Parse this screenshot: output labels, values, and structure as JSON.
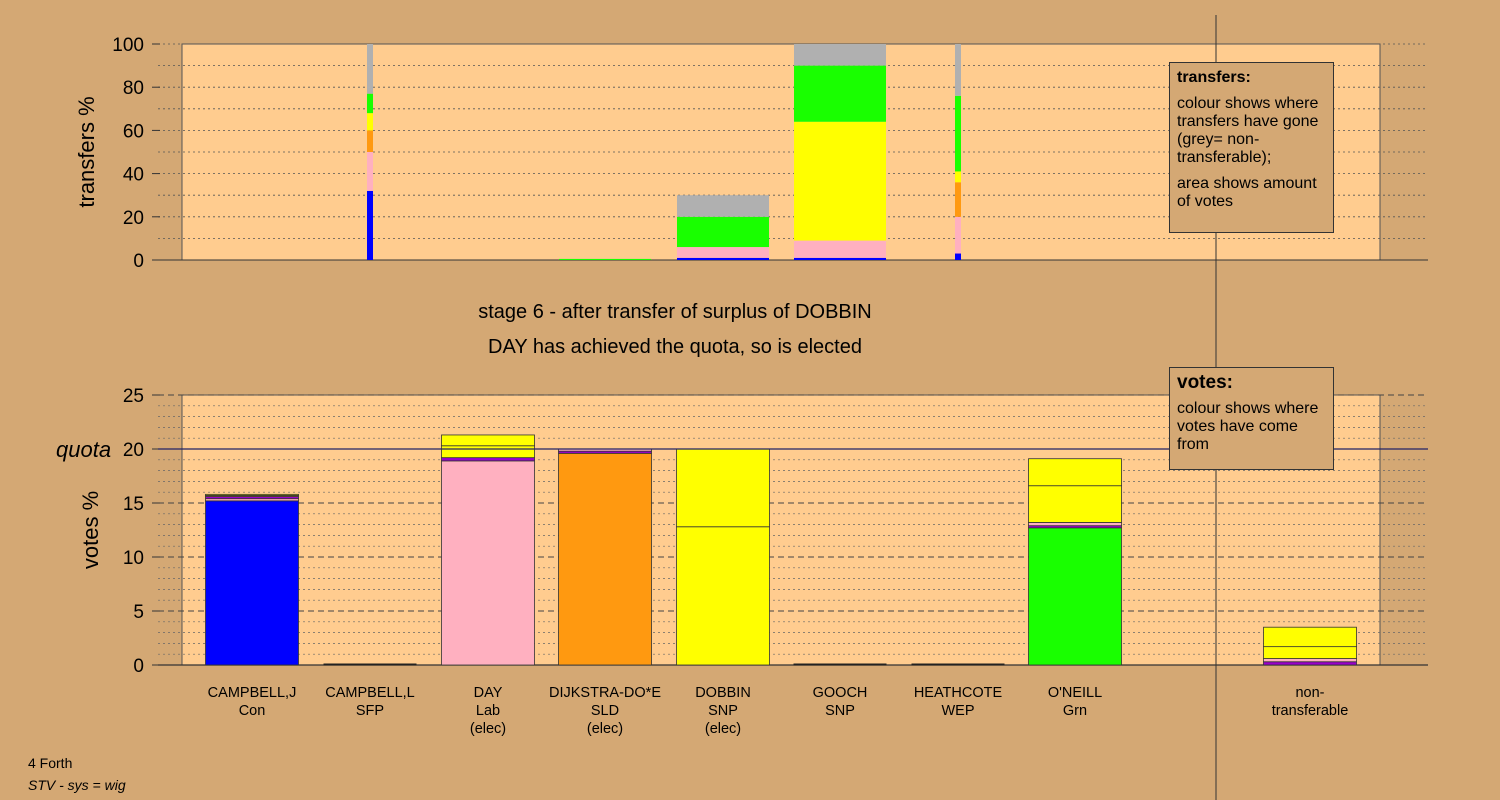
{
  "stage_line1": "stage 6 - after transfer of surplus of DOBBIN",
  "stage_line2": "DAY has achieved the quota, so is elected",
  "footer": {
    "region": "4 Forth",
    "system": "STV - sys = wig"
  },
  "transfers_legend": {
    "title": "transfers:",
    "p1": "colour shows where transfers have gone (grey= non-transferable);",
    "p2": "area shows amount of votes"
  },
  "votes_legend": {
    "title": "votes:",
    "p1": "colour shows where votes have come from"
  },
  "colors": {
    "background": "#d4a874",
    "plot": "#ffcc8f",
    "Con": "#0000ff",
    "SFP": "#9900cc",
    "Lab": "#ffb0c0",
    "SLD": "#ff9910",
    "SNP": "#ffff00",
    "WEP": "#cc66cc",
    "Grn": "#19ff00",
    "nontransferable": "#b0b0b0"
  },
  "chart_data": [
    {
      "type": "bar",
      "title": "",
      "ylabel": "transfers %",
      "ylim": [
        0,
        100
      ],
      "yticks": [
        0,
        20,
        40,
        60,
        80,
        100
      ],
      "grid": true,
      "columns": [
        {
          "candidate": "CAMPBELL,L",
          "thin": true,
          "segments": [
            {
              "color": "#0000ff",
              "value": 32
            },
            {
              "color": "#ffb0c0",
              "value": 18
            },
            {
              "color": "#ff9910",
              "value": 10
            },
            {
              "color": "#ffff00",
              "value": 8
            },
            {
              "color": "#19ff00",
              "value": 9
            },
            {
              "color": "#b0b0b0",
              "value": 23
            }
          ]
        },
        {
          "candidate": "DIJKSTRA-DO*E",
          "thin": false,
          "segments": [
            {
              "color": "#19ff00",
              "value": 0.5
            }
          ]
        },
        {
          "candidate": "DOBBIN",
          "thin": false,
          "segments": [
            {
              "color": "#0000ff",
              "value": 1
            },
            {
              "color": "#ffb0c0",
              "value": 5
            },
            {
              "color": "#19ff00",
              "value": 14
            },
            {
              "color": "#b0b0b0",
              "value": 10
            }
          ]
        },
        {
          "candidate": "GOOCH",
          "thin": false,
          "segments": [
            {
              "color": "#0000ff",
              "value": 1
            },
            {
              "color": "#ffb0c0",
              "value": 8
            },
            {
              "color": "#ffff00",
              "value": 55
            },
            {
              "color": "#19ff00",
              "value": 26
            },
            {
              "color": "#b0b0b0",
              "value": 10
            }
          ]
        },
        {
          "candidate": "HEATHCOTE",
          "thin": true,
          "segments": [
            {
              "color": "#0000ff",
              "value": 3
            },
            {
              "color": "#ffb0c0",
              "value": 17
            },
            {
              "color": "#ff9910",
              "value": 16
            },
            {
              "color": "#ffff00",
              "value": 5
            },
            {
              "color": "#19ff00",
              "value": 35
            },
            {
              "color": "#b0b0b0",
              "value": 24
            }
          ]
        }
      ]
    },
    {
      "type": "bar",
      "title": "",
      "ylabel": "votes %",
      "ylim": [
        0,
        25
      ],
      "yticks": [
        0,
        5,
        10,
        15,
        20,
        25
      ],
      "quota": 20,
      "quota_label": "quota",
      "grid": true,
      "categories": [
        {
          "name": "CAMPBELL,J",
          "party": "Con",
          "status": ""
        },
        {
          "name": "CAMPBELL,L",
          "party": "SFP",
          "status": ""
        },
        {
          "name": "DAY",
          "party": "Lab",
          "status": "(elec)"
        },
        {
          "name": "DIJKSTRA-DO*E",
          "party": "SLD",
          "status": "(elec)"
        },
        {
          "name": "DOBBIN",
          "party": "SNP",
          "status": "(elec)"
        },
        {
          "name": "GOOCH",
          "party": "SNP",
          "status": ""
        },
        {
          "name": "HEATHCOTE",
          "party": "WEP",
          "status": ""
        },
        {
          "name": "O'NEILL",
          "party": "Grn",
          "status": ""
        },
        {
          "name": "non-",
          "party": "transferable",
          "status": ""
        }
      ],
      "stacks": [
        [
          {
            "color": "#0000ff",
            "value": 15.2
          },
          {
            "color": "#ffb0c0",
            "value": 0.2
          },
          {
            "color": "#9900cc",
            "value": 0.2
          },
          {
            "color": "#ff9910",
            "value": 0.1
          },
          {
            "color": "#ffff00",
            "value": 0.1
          }
        ],
        [],
        [
          {
            "color": "#ffb0c0",
            "value": 18.9
          },
          {
            "color": "#9900cc",
            "value": 0.3
          },
          {
            "color": "#ffff00",
            "value": 1.1
          },
          {
            "color": "#ffff00",
            "value": 1.0
          }
        ],
        [
          {
            "color": "#ff9910",
            "value": 19.6
          },
          {
            "color": "#9900cc",
            "value": 0.2
          },
          {
            "color": "#ffb0c0",
            "value": 0.2
          }
        ],
        [
          {
            "color": "#ffff00",
            "value": 12.8
          },
          {
            "color": "#ffff00",
            "value": 7.2
          }
        ],
        [],
        [],
        [
          {
            "color": "#19ff00",
            "value": 12.7
          },
          {
            "color": "#9900cc",
            "value": 0.2
          },
          {
            "color": "#ffb0c0",
            "value": 0.3
          },
          {
            "color": "#ffff00",
            "value": 3.4
          },
          {
            "color": "#ffff00",
            "value": 2.5
          }
        ],
        [
          {
            "color": "#9900cc",
            "value": 0.3
          },
          {
            "color": "#ffb0c0",
            "value": 0.3
          },
          {
            "color": "#ffff00",
            "value": 1.1
          },
          {
            "color": "#ffff00",
            "value": 1.8
          }
        ]
      ]
    }
  ]
}
